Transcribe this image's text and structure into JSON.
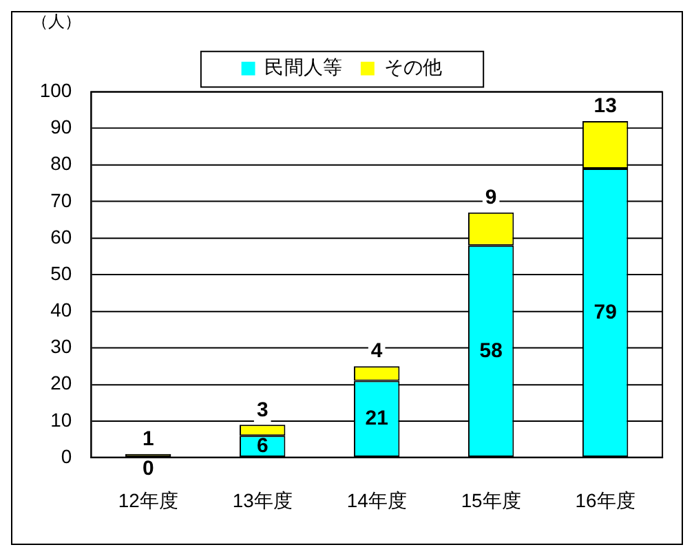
{
  "chart_data": {
    "type": "bar",
    "ylabel": "（人）",
    "categories": [
      "12年度",
      "13年度",
      "14年度",
      "15年度",
      "16年度"
    ],
    "stacked": true,
    "series": [
      {
        "name": "民間人等",
        "color": "#00ffff",
        "values": [
          0,
          6,
          21,
          58,
          79
        ]
      },
      {
        "name": "その他",
        "color": "#ffff00",
        "values": [
          1,
          3,
          4,
          9,
          13
        ]
      }
    ],
    "ylim": [
      0,
      100
    ],
    "yticks": [
      0,
      10,
      20,
      30,
      40,
      50,
      60,
      70,
      80,
      90,
      100
    ],
    "grid": "y",
    "legend": "top",
    "data_labels": true
  }
}
